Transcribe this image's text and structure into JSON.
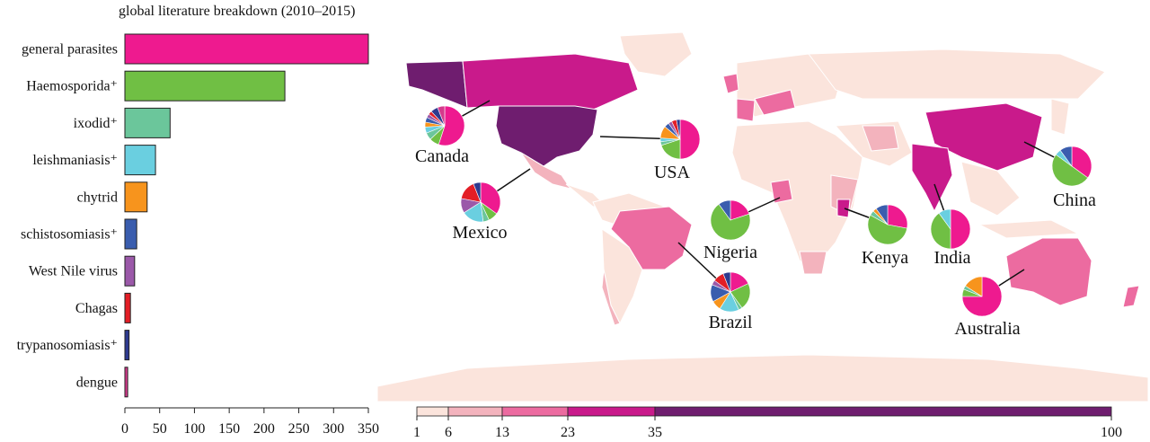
{
  "chart_data": [
    {
      "type": "bar",
      "orientation": "horizontal",
      "title": "global literature breakdown (2010–2015)",
      "categories": [
        "general parasites",
        "Haemosporida⁺",
        "ixodid⁺",
        "leishmaniasis⁺",
        "chytrid",
        "schistosomiasis⁺",
        "West Nile virus",
        "Chagas",
        "trypanosomiasis⁺",
        "dengue"
      ],
      "values": [
        350,
        230,
        65,
        44,
        32,
        17,
        14,
        8,
        6,
        4
      ],
      "colors": [
        "#ee1a8f",
        "#70bf44",
        "#6bc69b",
        "#6acfe0",
        "#f7941d",
        "#3a5dae",
        "#9b59a9",
        "#e31e26",
        "#2e3a8f",
        "#d43a8c"
      ],
      "xlim": [
        0,
        350
      ],
      "xticks": [
        "0",
        "50",
        "100",
        "150",
        "200",
        "250",
        "300",
        "350"
      ],
      "grid": false
    },
    {
      "type": "heatmap",
      "subtype": "choropleth map with pie charts",
      "scale_ticks": [
        "1",
        "6",
        "13",
        "23",
        "35",
        "100"
      ],
      "scale_breaks": [
        1,
        6,
        13,
        23,
        35,
        100
      ],
      "scale_colors": [
        "#fbe4dc",
        "#f3b3bd",
        "#ec6ba0",
        "#c91a8b",
        "#6f1d6f"
      ],
      "countries": [
        {
          "name": "Canada",
          "value": 30,
          "pie": [
            55,
            8,
            6,
            5,
            4,
            4,
            3,
            3,
            6,
            6
          ]
        },
        {
          "name": "USA",
          "value": 60,
          "pie": [
            50,
            20,
            3,
            3,
            10,
            4,
            3,
            4,
            3
          ]
        },
        {
          "name": "Mexico",
          "value": 20,
          "pie": [
            35,
            8,
            5,
            18,
            0,
            0,
            12,
            16,
            6
          ]
        },
        {
          "name": "Brazil",
          "value": 18,
          "pie": [
            18,
            22,
            3,
            16,
            8,
            14,
            4,
            9,
            6
          ]
        },
        {
          "name": "Nigeria",
          "value": 10,
          "pie": [
            20,
            70,
            0,
            0,
            0,
            10
          ]
        },
        {
          "name": "Kenya",
          "value": 30,
          "pie": [
            28,
            55,
            4,
            0,
            3,
            10
          ]
        },
        {
          "name": "India",
          "value": 30,
          "pie": [
            50,
            40,
            0,
            10
          ]
        },
        {
          "name": "China",
          "value": 30,
          "pie": [
            35,
            50,
            0,
            5,
            0,
            10
          ]
        },
        {
          "name": "Australia",
          "value": 18,
          "pie": [
            75,
            6,
            3,
            0,
            16
          ]
        }
      ]
    }
  ]
}
